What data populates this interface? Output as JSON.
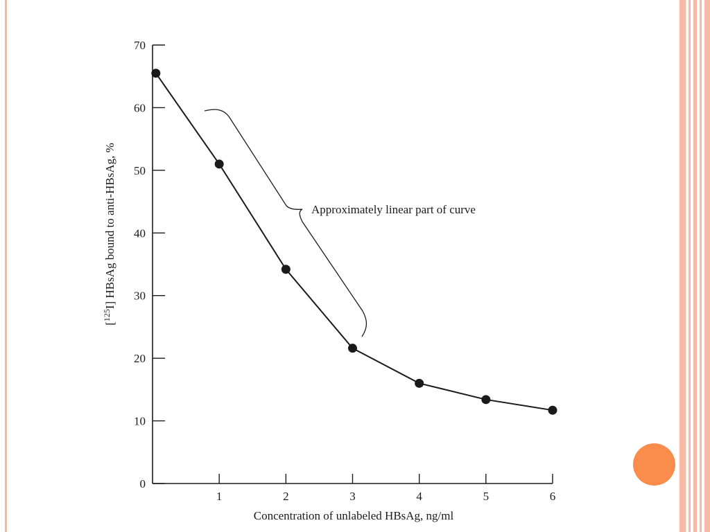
{
  "theme": {
    "stripe_color": "#f6b9a6",
    "stripe_dark": "#e8967e",
    "accent_color": "#fa8c4c",
    "line_color": "#1a1a1a"
  },
  "chart_data": {
    "type": "line",
    "title": "",
    "xlabel": "Concentration of unlabeled HBsAg, ng/ml",
    "ylabel_parts": {
      "open": "[",
      "sup": "125",
      "rest": "I] HBsAg bound to anti-HBsAg, %"
    },
    "xlim": [
      0,
      6
    ],
    "ylim": [
      0,
      70
    ],
    "x_ticks": [
      1,
      2,
      3,
      4,
      5,
      6
    ],
    "y_ticks": [
      0,
      10,
      20,
      30,
      40,
      50,
      60,
      70
    ],
    "grid": false,
    "series": [
      {
        "x": [
          0.05,
          1,
          2,
          3,
          4,
          5,
          6
        ],
        "y": [
          65.5,
          51,
          34.2,
          21.6,
          16,
          13.4,
          11.7
        ]
      }
    ],
    "annotation": {
      "text": "Approximately linear part of curve",
      "x_range": [
        1,
        3
      ]
    }
  }
}
